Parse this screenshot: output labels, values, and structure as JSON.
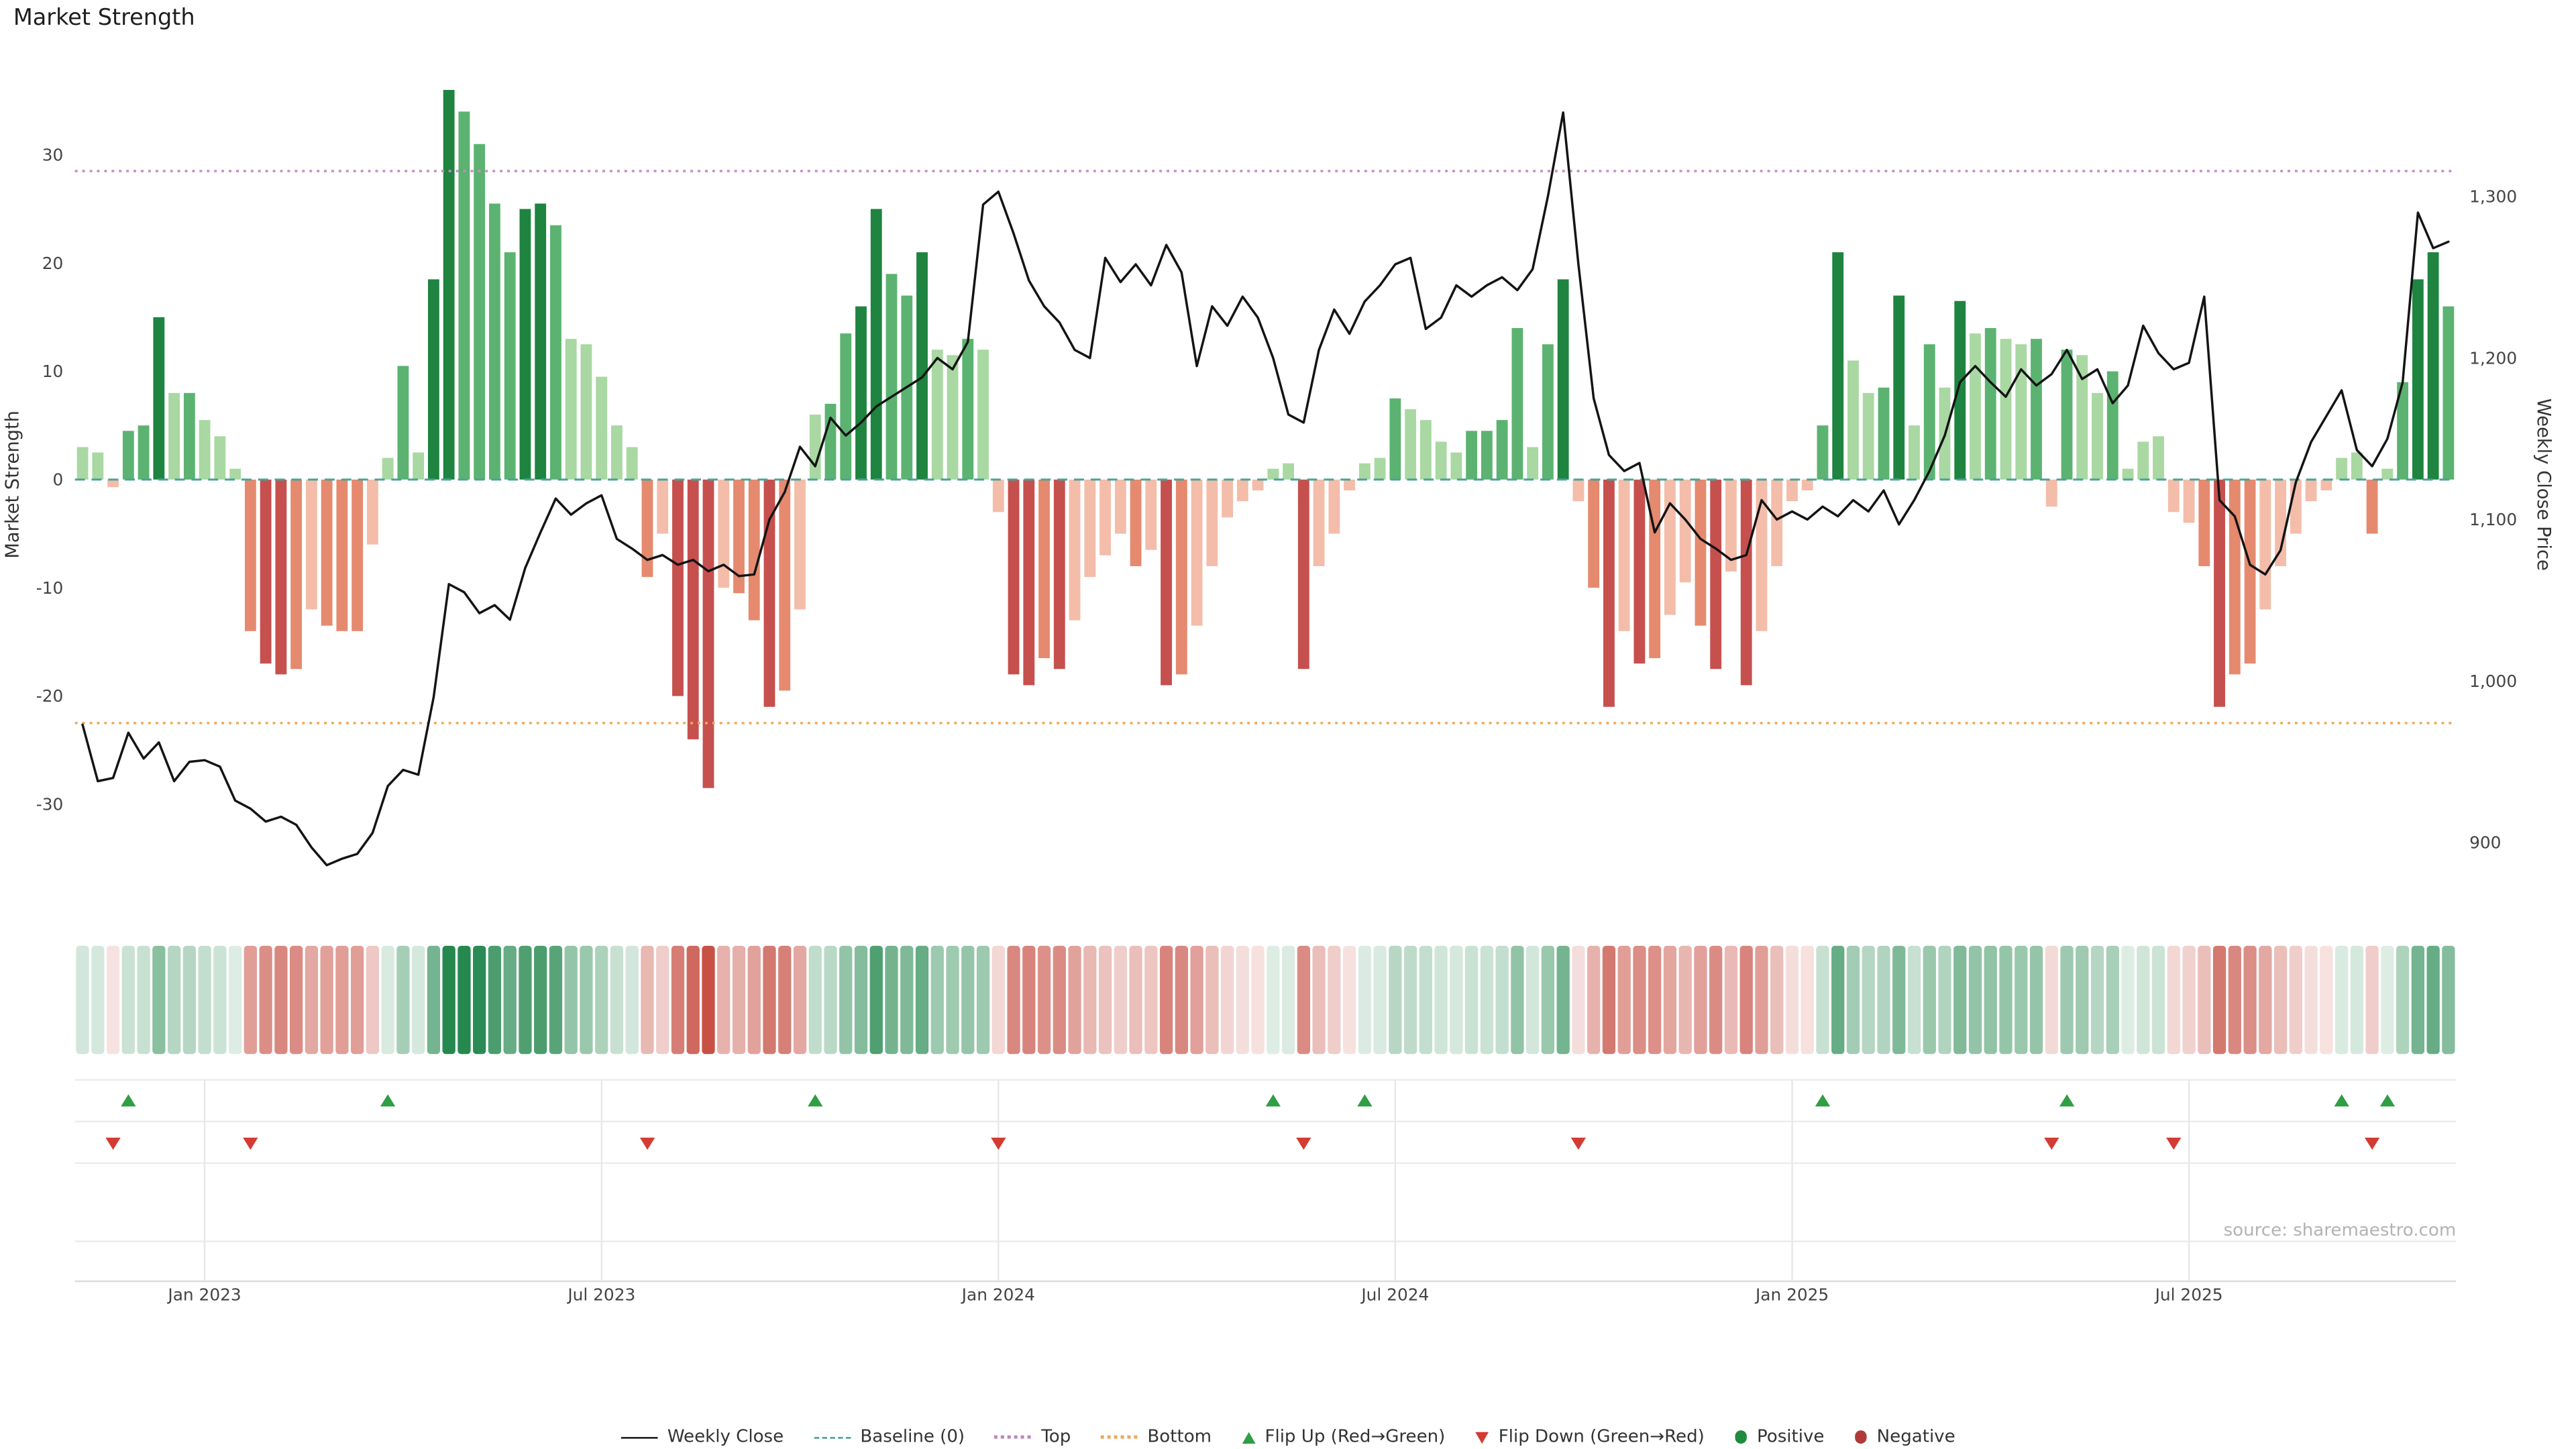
{
  "title": "Market Strength",
  "source": "source: sharemaestro.com",
  "axes": {
    "left_label": "Market Strength",
    "right_label": "Weekly Close Price",
    "left_ticks": [
      30,
      20,
      10,
      0,
      -10,
      -20,
      -30
    ],
    "right_ticks": [
      "1,300",
      "1,200",
      "1,100",
      "1,000",
      "900"
    ],
    "x_ticks": [
      "Jan 2023",
      "Jul 2023",
      "Jan 2024",
      "Jul 2024",
      "Jan 2025",
      "Jul 2025"
    ]
  },
  "chart_data": {
    "type": "combo: strength bars + weekly close line + heatmap strip + flip markers",
    "interval": "weekly",
    "start_date_approx": "2022-11-04",
    "left_axis_range": [
      -37,
      39
    ],
    "right_axis_range": [
      880,
      1380
    ],
    "baseline": 0,
    "top_threshold": 28.5,
    "bottom_threshold": -22.5,
    "x_tick_weeks": [
      8,
      34,
      60,
      86,
      112,
      138
    ],
    "strength": [
      3,
      2.5,
      -0.7,
      4.5,
      5,
      15,
      8,
      8,
      5.5,
      4,
      1,
      -14,
      -17,
      -18,
      -17.5,
      -12,
      -13.5,
      -14,
      -14,
      -6,
      2,
      10.5,
      2.5,
      18.5,
      36,
      34,
      31,
      25.5,
      21,
      25,
      25.5,
      23.5,
      13,
      12.5,
      9.5,
      5,
      3,
      -9,
      -5,
      -20,
      -24,
      -28.5,
      -10,
      -10.5,
      -13,
      -21,
      -19.5,
      -12,
      6,
      7,
      13.5,
      16,
      25,
      19,
      17,
      21,
      12,
      11.5,
      13,
      12,
      -3,
      -18,
      -19,
      -16.5,
      -17.5,
      -13,
      -9,
      -7,
      -5,
      -8,
      -6.5,
      -19,
      -18,
      -13.5,
      -8,
      -3.5,
      -2,
      -1,
      1,
      1.5,
      -17.5,
      -8,
      -5,
      -1,
      1.5,
      2,
      7.5,
      6.5,
      5.5,
      3.5,
      2.5,
      4.5,
      4.5,
      5.5,
      14,
      3,
      12.5,
      18.5,
      -2,
      -10,
      -21,
      -14,
      -17,
      -16.5,
      -12.5,
      -9.5,
      -13.5,
      -17.5,
      -8.5,
      -19,
      -14,
      -8,
      -2,
      -1,
      5,
      21,
      11,
      8,
      8.5,
      17,
      5,
      12.5,
      8.5,
      16.5,
      13.5,
      14,
      13,
      12.5,
      13,
      -2.5,
      12,
      11.5,
      8,
      10,
      1,
      3.5,
      4,
      -3,
      -4,
      -8,
      -21,
      -18,
      -17,
      -12,
      -8,
      -5,
      -2,
      -1,
      2,
      2.5,
      -5,
      1,
      9,
      18.5,
      21,
      16
    ],
    "weekly_close": [
      973,
      938,
      940,
      968,
      952,
      962,
      938,
      950,
      951,
      947,
      926,
      921,
      913,
      916,
      911,
      897,
      886,
      890,
      893,
      906,
      935,
      945,
      942,
      990,
      1060,
      1055,
      1042,
      1047,
      1038,
      1070,
      1092,
      1113,
      1103,
      1110,
      1115,
      1088,
      1082,
      1075,
      1078,
      1072,
      1075,
      1068,
      1072,
      1065,
      1066,
      1100,
      1117,
      1145,
      1133,
      1163,
      1152,
      1160,
      1170,
      1176,
      1182,
      1188,
      1200,
      1193,
      1210,
      1295,
      1303,
      1277,
      1248,
      1232,
      1222,
      1205,
      1200,
      1262,
      1247,
      1258,
      1245,
      1270,
      1253,
      1195,
      1232,
      1220,
      1238,
      1225,
      1200,
      1165,
      1160,
      1205,
      1230,
      1215,
      1235,
      1245,
      1258,
      1262,
      1218,
      1225,
      1245,
      1238,
      1245,
      1250,
      1242,
      1255,
      1300,
      1352,
      1258,
      1175,
      1140,
      1130,
      1135,
      1092,
      1110,
      1100,
      1088,
      1082,
      1075,
      1078,
      1112,
      1100,
      1105,
      1100,
      1108,
      1102,
      1112,
      1105,
      1118,
      1097,
      1112,
      1130,
      1152,
      1185,
      1195,
      1185,
      1176,
      1193,
      1183,
      1190,
      1205,
      1187,
      1193,
      1172,
      1183,
      1220,
      1203,
      1193,
      1197,
      1238,
      1112,
      1102,
      1072,
      1066,
      1081,
      1123,
      1148,
      1164,
      1180,
      1143,
      1133,
      1150,
      1185,
      1290,
      1268,
      1272
    ],
    "flip_up_weeks": [
      3,
      20,
      48,
      78,
      84,
      114,
      130,
      148,
      151
    ],
    "flip_down_weeks": [
      2,
      11,
      37,
      60,
      80,
      98,
      129,
      137,
      150
    ]
  },
  "colors": {
    "line": "#141414",
    "baseline": "#49a39a",
    "top": "#c48fc4",
    "bottom": "#f0a95e",
    "green_light": "#a9d8a2",
    "green_mid": "#5cb371",
    "green_dark": "#1e8440",
    "red_light": "#f3bdaa",
    "red_mid": "#e58a6e",
    "red_dark": "#c6504e",
    "flip_up": "#2f9e44",
    "flip_down": "#d33b33",
    "positive_dot": "#1f8b3c",
    "negative_dot": "#b03a3a",
    "heat_green": "30,132,73",
    "heat_red": "192,57,43"
  },
  "legend": {
    "items": [
      {
        "label": "Weekly Close",
        "type": "line",
        "color": "#141414"
      },
      {
        "label": "Baseline (0)",
        "type": "dashed",
        "color": "#3d9e96"
      },
      {
        "label": "Top",
        "type": "dotted",
        "color": "#bd86bd"
      },
      {
        "label": "Bottom",
        "type": "dotted",
        "color": "#eda75f"
      },
      {
        "label": "Flip Up (Red→Green)",
        "type": "triangle-up",
        "color": "#2f9e44"
      },
      {
        "label": "Flip Down (Green→Red)",
        "type": "triangle-down",
        "color": "#d33b33"
      },
      {
        "label": "Positive",
        "type": "dot",
        "color": "#1f8b3c"
      },
      {
        "label": "Negative",
        "type": "dot",
        "color": "#b03a3a"
      }
    ]
  }
}
